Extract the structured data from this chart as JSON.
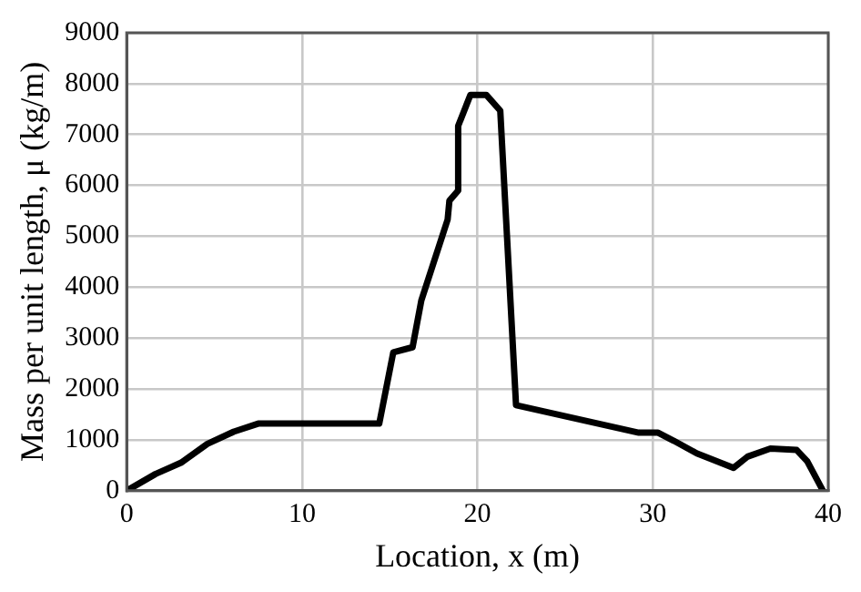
{
  "chart_data": {
    "type": "line",
    "xlabel": "Location, x (m)",
    "ylabel": "Mass per unit length, μ (kg/m)",
    "x": [
      0,
      1.65,
      3.1,
      4.6,
      6.1,
      7.5,
      14.4,
      15.2,
      16.3,
      16.8,
      18.3,
      18.4,
      18.9,
      18.9,
      19.6,
      20.5,
      21.3,
      22.2,
      29.2,
      30.3,
      31.2,
      32.5,
      34.6,
      35.4,
      36.7,
      38.2,
      38.8,
      39.7
    ],
    "series": [
      {
        "color": "#000000",
        "values": [
          0,
          330,
          550,
          920,
          1160,
          1320,
          1320,
          2720,
          2820,
          3740,
          5330,
          5700,
          5900,
          7170,
          7780,
          7780,
          7470,
          1680,
          1140,
          1140,
          980,
          735,
          450,
          670,
          830,
          800,
          580,
          0
        ]
      }
    ],
    "xlim": [
      0,
      40
    ],
    "xticks": [
      0,
      10,
      20,
      30,
      40
    ],
    "ylim": [
      0,
      9000
    ],
    "yticks": [
      0,
      1000,
      2000,
      3000,
      4000,
      5000,
      6000,
      7000,
      8000,
      9000
    ],
    "grid": true,
    "legend": false,
    "marker": "none",
    "line_style": "solid"
  }
}
